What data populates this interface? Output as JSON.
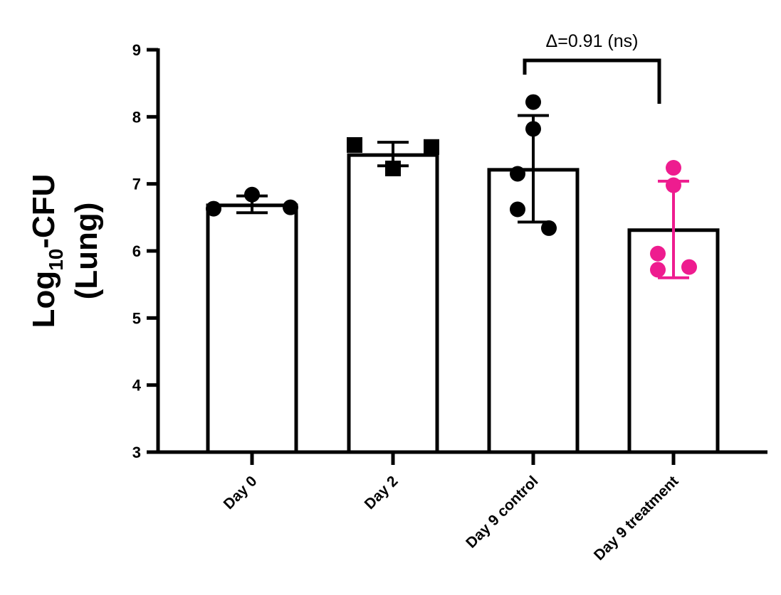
{
  "chart_data": {
    "type": "bar",
    "ylabel_line1_main": "Log",
    "ylabel_line1_sub": "10",
    "ylabel_line1_rest": "-CFU",
    "ylabel_line2": "(Lung)",
    "xlabel": "",
    "ylim": [
      3,
      9
    ],
    "yticks": [
      "3",
      "4",
      "5",
      "6",
      "7",
      "8",
      "9"
    ],
    "categories": [
      "Day 0",
      "Day 2",
      "Day 9 control",
      "Day 9 treatment"
    ],
    "values": [
      6.68,
      7.43,
      7.21,
      6.31
    ],
    "error_low": [
      6.57,
      7.27,
      6.43,
      5.6
    ],
    "error_high": [
      6.82,
      7.62,
      8.02,
      7.04
    ],
    "points": [
      [
        6.63,
        6.84,
        6.65
      ],
      [
        7.58,
        7.23,
        7.55
      ],
      [
        8.22,
        7.82,
        7.15,
        6.62,
        6.34
      ],
      [
        7.24,
        6.98,
        5.96,
        5.72,
        5.76
      ]
    ],
    "point_shapes": [
      "circle",
      "square",
      "circle",
      "circle"
    ],
    "colors": [
      "#000000",
      "#000000",
      "#000000",
      "#ee1c8f"
    ],
    "grid": false,
    "annotation": {
      "text": "Δ=0.91 (ns)",
      "from_category": 2,
      "to_category": 3
    }
  }
}
